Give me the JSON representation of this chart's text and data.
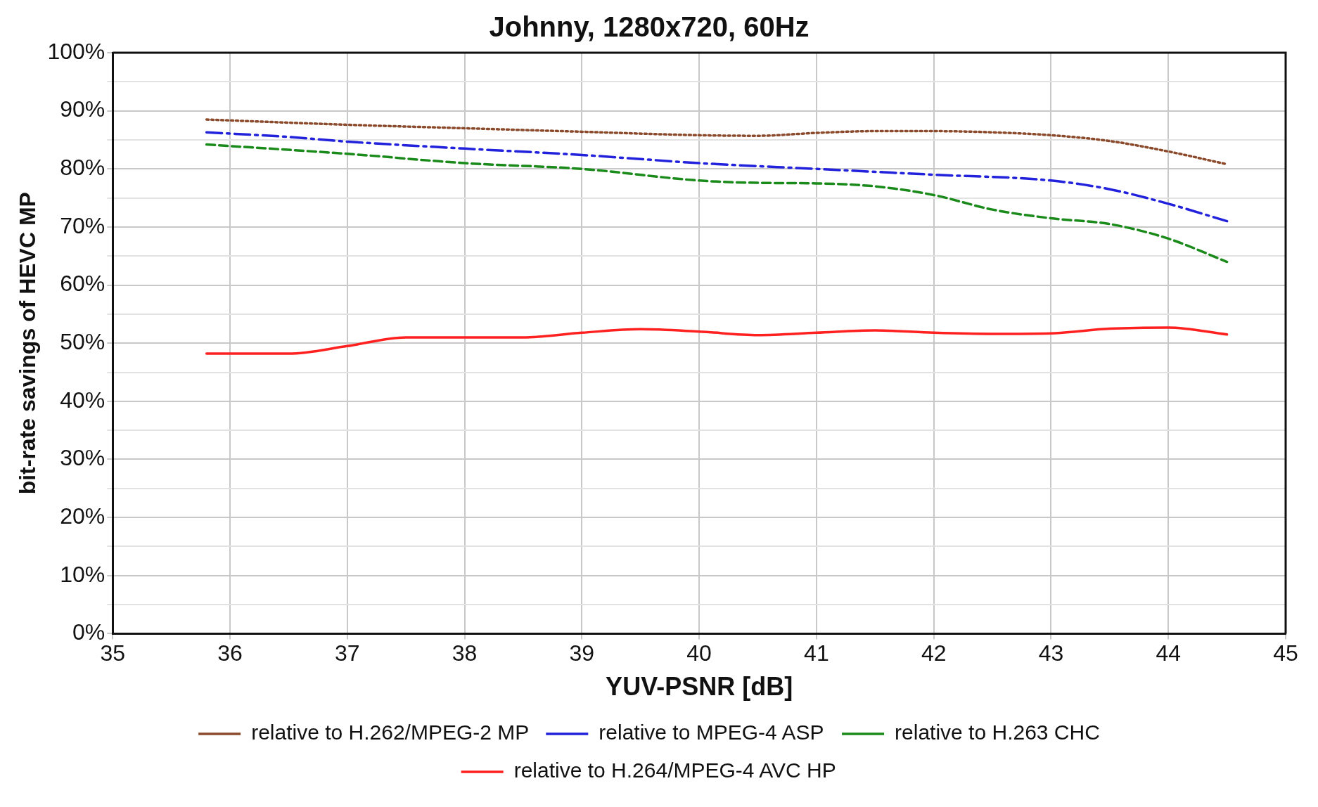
{
  "chart_data": {
    "type": "line",
    "title": "Johnny, 1280x720, 60Hz",
    "xlabel": "YUV-PSNR [dB]",
    "ylabel": "bit-rate savings of HEVC MP",
    "xlim": [
      35,
      45
    ],
    "xticks": [
      35,
      36,
      37,
      38,
      39,
      40,
      41,
      42,
      43,
      44,
      45
    ],
    "ylim": [
      0,
      100
    ],
    "yticks": [
      {
        "value": 0,
        "label": "0%"
      },
      {
        "value": 5,
        "label": null
      },
      {
        "value": 10,
        "label": "10%"
      },
      {
        "value": 15,
        "label": null
      },
      {
        "value": 20,
        "label": "20%"
      },
      {
        "value": 25,
        "label": null
      },
      {
        "value": 30,
        "label": "30%"
      },
      {
        "value": 35,
        "label": null
      },
      {
        "value": 40,
        "label": "40%"
      },
      {
        "value": 45,
        "label": null
      },
      {
        "value": 50,
        "label": "50%"
      },
      {
        "value": 55,
        "label": null
      },
      {
        "value": 60,
        "label": "60%"
      },
      {
        "value": 65,
        "label": null
      },
      {
        "value": 70,
        "label": "70%"
      },
      {
        "value": 75,
        "label": null
      },
      {
        "value": 80,
        "label": "80%"
      },
      {
        "value": 85,
        "label": null
      },
      {
        "value": 90,
        "label": "90%"
      },
      {
        "value": 95,
        "label": null
      },
      {
        "value": 100,
        "label": "100%"
      }
    ],
    "grid": true,
    "legend": "bottom",
    "marker": "none",
    "series": [
      {
        "name": "relative to H.262/MPEG-2 MP",
        "color": "#8b4a2b",
        "line_style": "dotted",
        "x": [
          35.8,
          37,
          38,
          39,
          40,
          40.5,
          41,
          41.5,
          42,
          42.5,
          43,
          43.5,
          44,
          44.5
        ],
        "values": [
          88.5,
          87.6,
          87,
          86.4,
          85.8,
          85.7,
          86.2,
          86.5,
          86.5,
          86.3,
          85.8,
          84.8,
          83,
          80.8
        ]
      },
      {
        "name": "relative to MPEG-4 ASP",
        "color": "#2222dd",
        "line_style": "dashdot",
        "x": [
          35.8,
          36.5,
          37,
          38,
          39,
          40,
          41,
          42,
          43,
          43.5,
          44,
          44.5
        ],
        "values": [
          86.3,
          85.5,
          84.7,
          83.5,
          82.4,
          81,
          80,
          79,
          78,
          76.5,
          74,
          71
        ]
      },
      {
        "name": "relative to H.263 CHC",
        "color": "#1a8a1a",
        "line_style": "dashed",
        "x": [
          35.8,
          37,
          38,
          39,
          40,
          40.5,
          41,
          41.5,
          42,
          42.5,
          43,
          43.5,
          44,
          44.5
        ],
        "values": [
          84.2,
          82.6,
          81,
          80,
          78,
          77.6,
          77.5,
          77,
          75.5,
          73,
          71.5,
          70.5,
          68,
          64
        ]
      },
      {
        "name": "relative to H.264/MPEG-4 AVC HP",
        "color": "#ff2020",
        "line_style": "solid",
        "x": [
          35.8,
          36.5,
          37,
          37.5,
          38,
          38.5,
          39,
          39.5,
          40,
          40.5,
          41,
          41.5,
          42,
          42.5,
          43,
          43.5,
          44,
          44.5
        ],
        "values": [
          48.2,
          48.2,
          49.5,
          51,
          51,
          51,
          51.8,
          52.4,
          52,
          51.4,
          51.8,
          52.2,
          51.8,
          51.6,
          51.7,
          52.5,
          52.7,
          51.5
        ]
      }
    ]
  }
}
